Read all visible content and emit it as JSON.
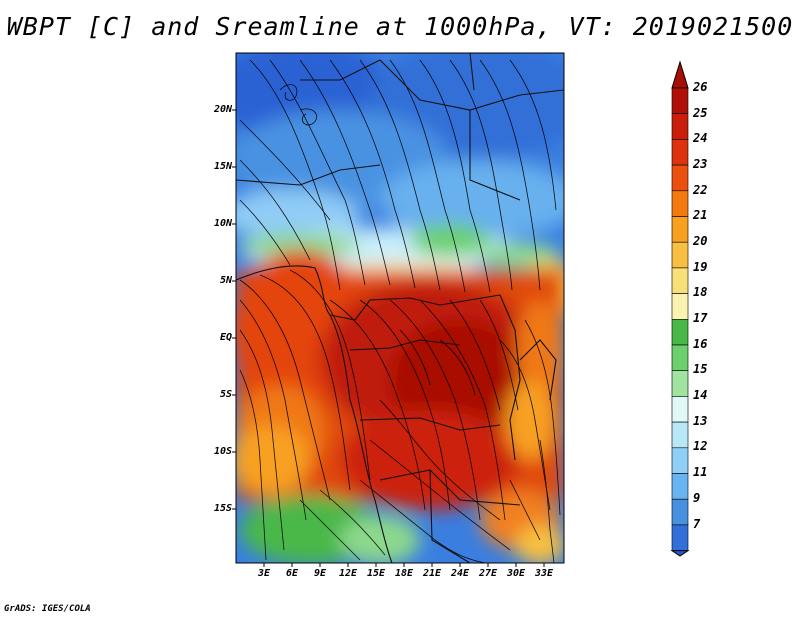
{
  "title": "WBPT [C] and Sreamline at 1000hPa, VT: 2019021500",
  "credit": "GrADS: IGES/COLA",
  "map": {
    "lat_ticks": [
      "20N",
      "15N",
      "10N",
      "5N",
      "EQ",
      "5S",
      "10S",
      "15S"
    ],
    "lon_ticks": [
      "3E",
      "6E",
      "9E",
      "12E",
      "15E",
      "18E",
      "21E",
      "24E",
      "27E",
      "30E",
      "33E"
    ]
  },
  "colorbar": {
    "labels": [
      "26",
      "25",
      "24",
      "23",
      "22",
      "21",
      "20",
      "19",
      "18",
      "17",
      "16",
      "15",
      "14",
      "13",
      "12",
      "11",
      "9",
      "7"
    ],
    "colors": [
      "#b01008",
      "#c81e0a",
      "#dc320e",
      "#ec5010",
      "#f47a10",
      "#f8a020",
      "#f8c040",
      "#f8e078",
      "#fcf2b0",
      "#48b848",
      "#6cd06c",
      "#a0e4a0",
      "#e0f8f8",
      "#b8e8f8",
      "#90d0f8",
      "#68b4f0",
      "#4890e0",
      "#3070d8",
      "#2458d0"
    ]
  }
}
